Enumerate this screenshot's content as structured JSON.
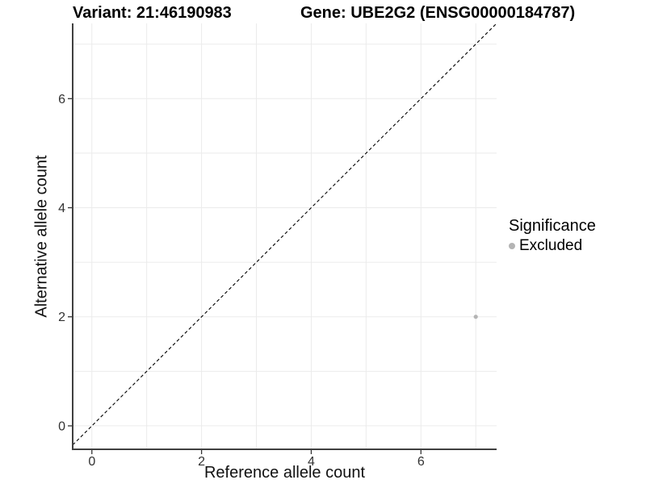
{
  "header": {
    "variant_title": "Variant: 21:46190983",
    "gene_title": "Gene: UBE2G2 (ENSG00000184787)"
  },
  "legend": {
    "title": "Significance",
    "items": [
      {
        "label": "Excluded",
        "color": "#b4b4b4"
      }
    ]
  },
  "chart_data": {
    "type": "scatter",
    "title": "",
    "xlabel": "Reference allele count",
    "ylabel": "Alternative allele count",
    "xlim": [
      -0.35,
      7.38
    ],
    "ylim": [
      -0.43,
      7.38
    ],
    "xticks": [
      0,
      2,
      4,
      6
    ],
    "yticks": [
      0,
      2,
      4,
      6
    ],
    "grid_x": [
      0,
      1,
      2,
      3,
      4,
      5,
      6,
      7
    ],
    "grid_y": [
      0,
      1,
      2,
      3,
      4,
      5,
      6,
      7
    ],
    "grid": "on",
    "legend_position": "right",
    "series": [
      {
        "name": "Excluded",
        "color": "#b4b4b4",
        "points": [
          {
            "x": 7,
            "y": 2
          }
        ]
      }
    ],
    "reference_line": {
      "equation": "y = x",
      "style": "dashed",
      "color": "#000000"
    }
  },
  "colors": {
    "background": "#ffffff",
    "gridline": "#ebebeb",
    "axis_line": "#404040",
    "tick_mark": "#333333",
    "tick_label": "#323232",
    "point": "#b4b4b4"
  }
}
